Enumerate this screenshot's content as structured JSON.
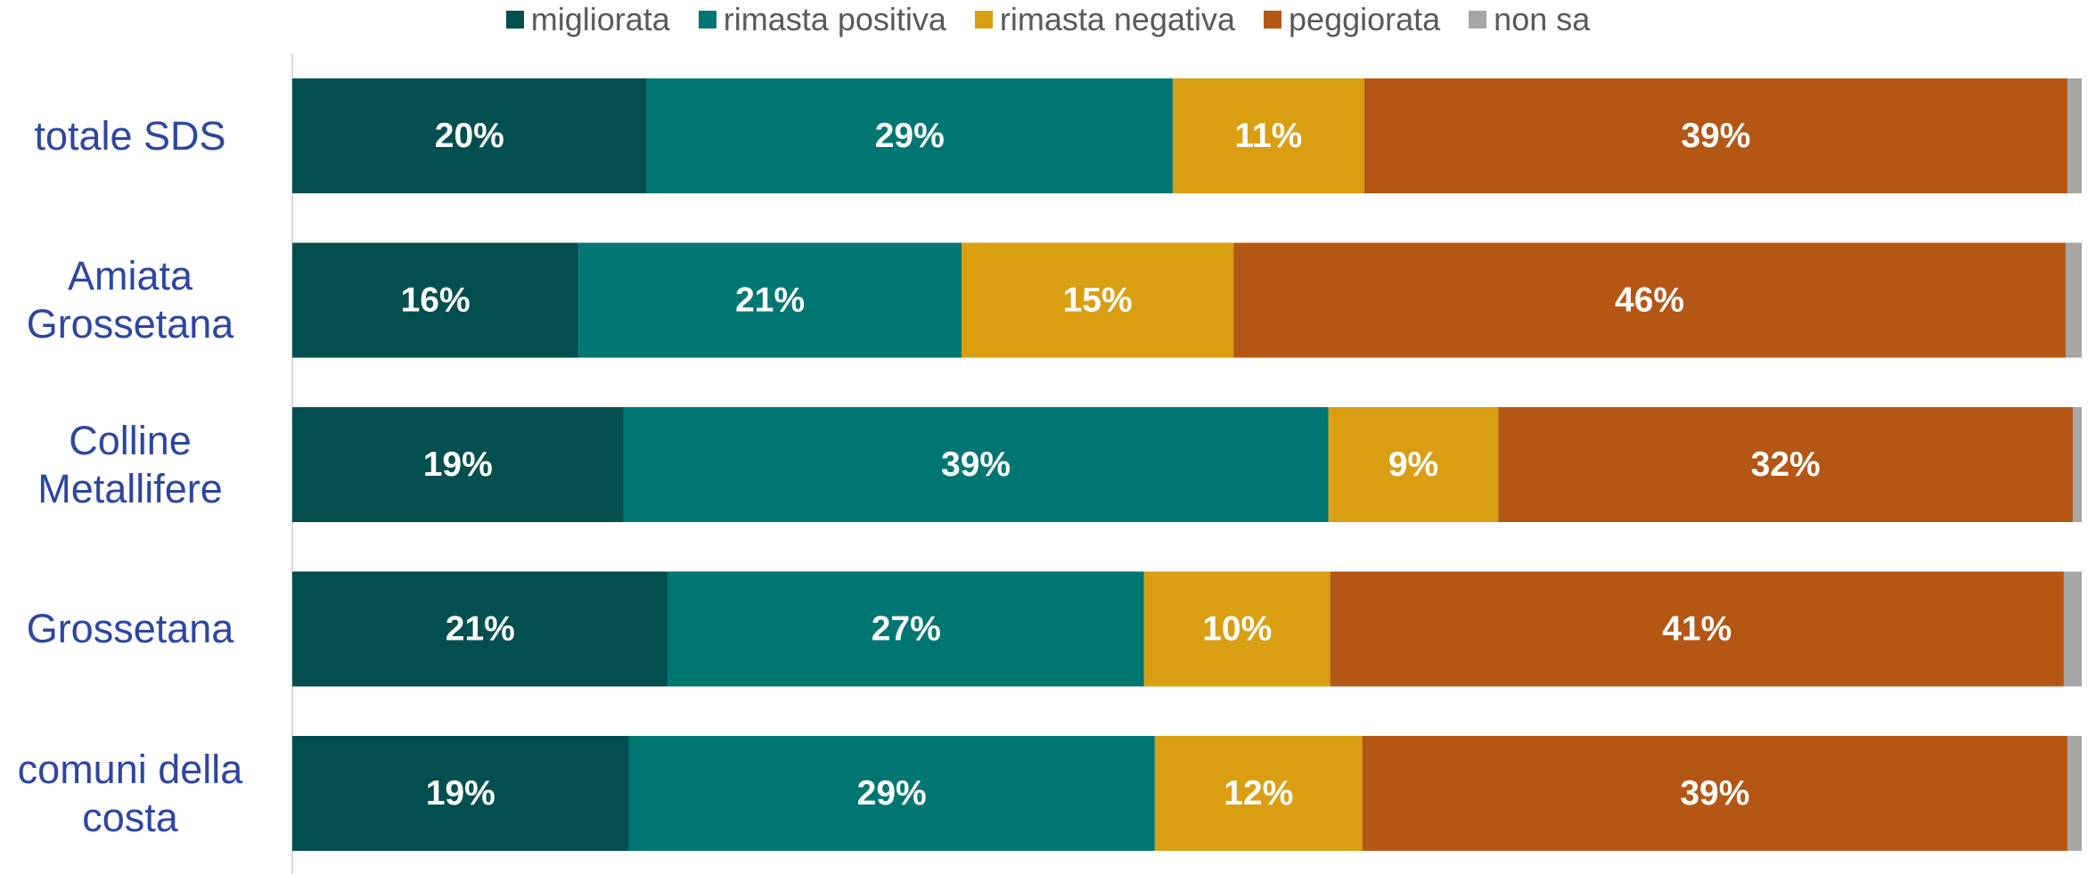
{
  "chart_data": {
    "type": "bar",
    "orientation": "horizontal",
    "stacked": true,
    "legend": "top",
    "categories": [
      "totale SDS",
      "Amiata Grossetana",
      "Colline Metallifere",
      "Grossetana",
      "comuni della costa"
    ],
    "xlim": [
      0,
      100
    ],
    "series": [
      {
        "name": "migliorata",
        "color": "#034f4f",
        "values": [
          19.8,
          16.0,
          18.5,
          21.0,
          18.8
        ],
        "value_labels": [
          "20%",
          "16%",
          "19%",
          "21%",
          "19%"
        ]
      },
      {
        "name": "rimasta positiva",
        "color": "#007672",
        "values": [
          29.4,
          21.4,
          39.4,
          26.6,
          29.4
        ],
        "value_labels": [
          "29%",
          "21%",
          "39%",
          "27%",
          "29%"
        ]
      },
      {
        "name": "rimasta negativa",
        "color": "#d99e12",
        "values": [
          10.7,
          15.2,
          9.5,
          10.4,
          11.6
        ],
        "value_labels": [
          "11%",
          "15%",
          "9%",
          "10%",
          "12%"
        ]
      },
      {
        "name": "peggiorata",
        "color": "#b45614",
        "values": [
          39.3,
          46.5,
          32.1,
          41.0,
          39.4
        ],
        "value_labels": [
          "39%",
          "46%",
          "32%",
          "41%",
          "39%"
        ]
      },
      {
        "name": "non sa",
        "color": "#a6a6a6",
        "values": [
          0.8,
          0.9,
          0.5,
          1.0,
          0.8
        ],
        "value_labels": [
          null,
          null,
          null,
          null,
          null
        ]
      }
    ]
  }
}
